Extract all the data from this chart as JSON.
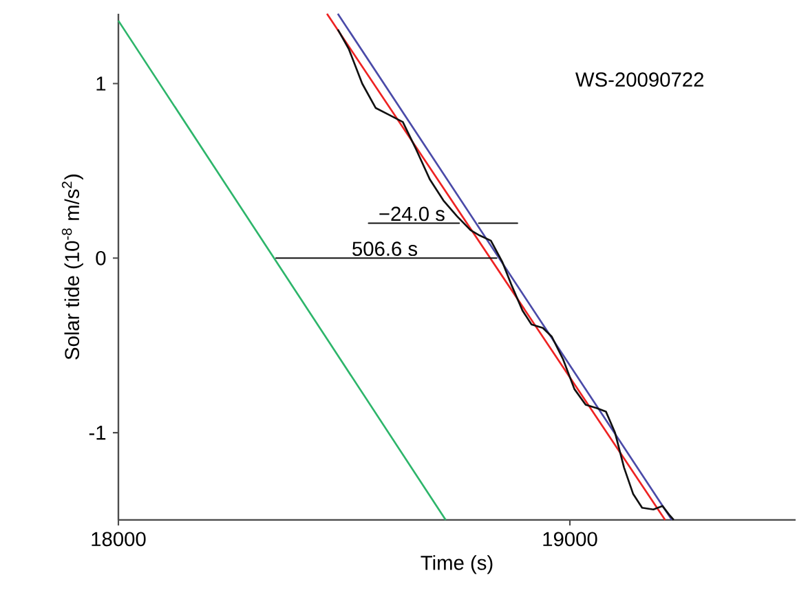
{
  "chart_data": {
    "type": "line",
    "xlabel": "Time (s)",
    "ylabel": "Solar tide  (10$^{-8}$ m/s$^{2}$)",
    "xlim": [
      18000,
      19500
    ],
    "ylim": [
      -1.5,
      1.4
    ],
    "xticks": [
      18000,
      19000
    ],
    "yticks": [
      -1,
      0,
      1
    ],
    "grid": false,
    "marker": "none",
    "line_style": "solid",
    "series": [
      {
        "color": "#2db56a",
        "x": [
          18000,
          18725
        ],
        "values": [
          1.36,
          -1.5
        ]
      },
      {
        "color": "#ee2222",
        "x": [
          18462,
          19211
        ],
        "values": [
          1.4,
          -1.5
        ]
      },
      {
        "color": "#4a4aa8",
        "x": [
          18486,
          19226
        ],
        "values": [
          1.4,
          -1.5
        ]
      },
      {
        "color": "#111111",
        "x": [
          18486,
          18510,
          18540,
          18570,
          18600,
          18630,
          18660,
          18690,
          18720,
          18750,
          18780,
          18800,
          18825,
          18850,
          18870,
          18895,
          18915,
          18940,
          18960,
          18985,
          19010,
          19035,
          19060,
          19080,
          19100,
          19120,
          19140,
          19160,
          19185,
          19205,
          19220,
          19230
        ],
        "values": [
          1.31,
          1.2,
          1.0,
          0.86,
          0.82,
          0.78,
          0.62,
          0.45,
          0.33,
          0.24,
          0.16,
          0.13,
          0.1,
          -0.02,
          -0.15,
          -0.3,
          -0.38,
          -0.4,
          -0.45,
          -0.58,
          -0.75,
          -0.84,
          -0.86,
          -0.88,
          -1.0,
          -1.2,
          -1.35,
          -1.43,
          -1.44,
          -1.42,
          -1.47,
          -1.5
        ]
      },
      {
        "color": "#111111",
        "x": [
          18838,
          18349
        ],
        "values": [
          0,
          0
        ]
      },
      {
        "color": "#111111",
        "x": [
          18554,
          18755
        ],
        "values": [
          0.2,
          0.2
        ]
      },
      {
        "color": "#111111",
        "x": [
          18884,
          18798
        ],
        "values": [
          0.2,
          0.2
        ]
      }
    ],
    "annotations": [
      {
        "text": "−24.0 s",
        "x": 18650,
        "y": 0.2
      },
      {
        "text": "506.6 s",
        "x": 18590,
        "y": 0
      },
      "WS-20090722"
    ]
  }
}
